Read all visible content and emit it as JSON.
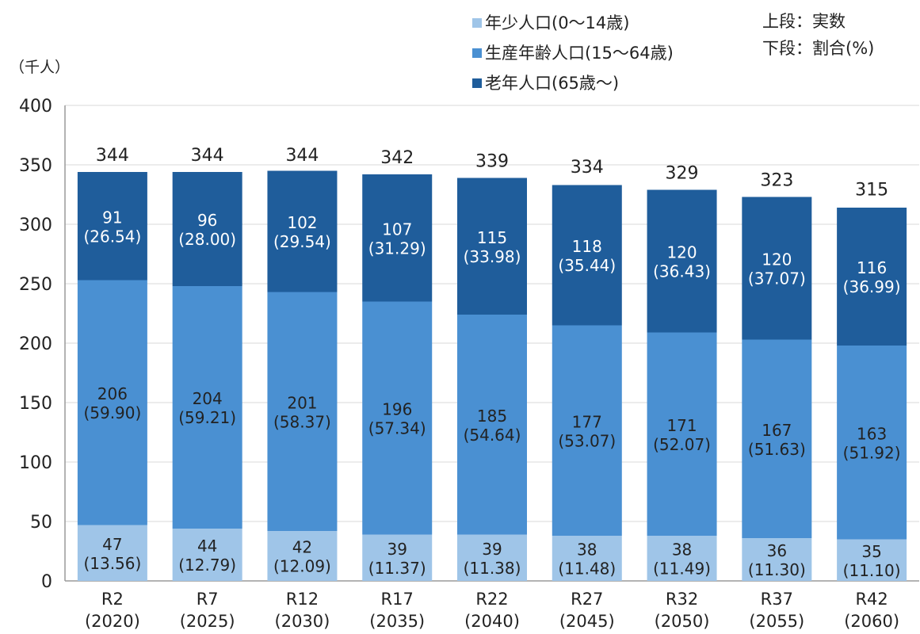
{
  "chart_data": {
    "type": "bar",
    "stacked": true,
    "y_unit_label": "（千人）",
    "ylim": [
      0,
      400
    ],
    "yticks": [
      0,
      50,
      100,
      150,
      200,
      250,
      300,
      350,
      400
    ],
    "grid": true,
    "categories": [
      [
        "R2",
        "(2020)"
      ],
      [
        "R7",
        "(2025)"
      ],
      [
        "R12",
        "(2030)"
      ],
      [
        "R17",
        "(2035)"
      ],
      [
        "R22",
        "(2040)"
      ],
      [
        "R27",
        "(2045)"
      ],
      [
        "R32",
        "(2050)"
      ],
      [
        "R37",
        "(2055)"
      ],
      [
        "R42",
        "(2060)"
      ]
    ],
    "totals": [
      344,
      344,
      344,
      342,
      339,
      334,
      329,
      323,
      315
    ],
    "series": [
      {
        "name": "年少人口(0～14歳)",
        "color": "#9fc5e8",
        "values": [
          47,
          44,
          42,
          39,
          39,
          38,
          38,
          36,
          35
        ],
        "percent_labels": [
          "(13.56)",
          "(12.79)",
          "(12.09)",
          "(11.37)",
          "(11.38)",
          "(11.48)",
          "(11.49)",
          "(11.30)",
          "(11.10)"
        ]
      },
      {
        "name": "生産年齢人口(15～64歳)",
        "color": "#4a90d2",
        "values": [
          206,
          204,
          201,
          196,
          185,
          177,
          171,
          167,
          163
        ],
        "percent_labels": [
          "(59.90)",
          "(59.21)",
          "(58.37)",
          "(57.34)",
          "(54.64)",
          "(53.07)",
          "(52.07)",
          "(51.63)",
          "(51.92)"
        ]
      },
      {
        "name": "老年人口(65歳～)",
        "color": "#1f5d9b",
        "values": [
          91,
          96,
          102,
          107,
          115,
          118,
          120,
          120,
          116
        ],
        "percent_labels": [
          "(26.54)",
          "(28.00)",
          "(29.54)",
          "(31.29)",
          "(33.98)",
          "(35.44)",
          "(36.43)",
          "(37.07)",
          "(36.99)"
        ]
      }
    ],
    "legend_position": "top-center",
    "note": [
      "上段：実数",
      "下段：割合(%)"
    ]
  }
}
